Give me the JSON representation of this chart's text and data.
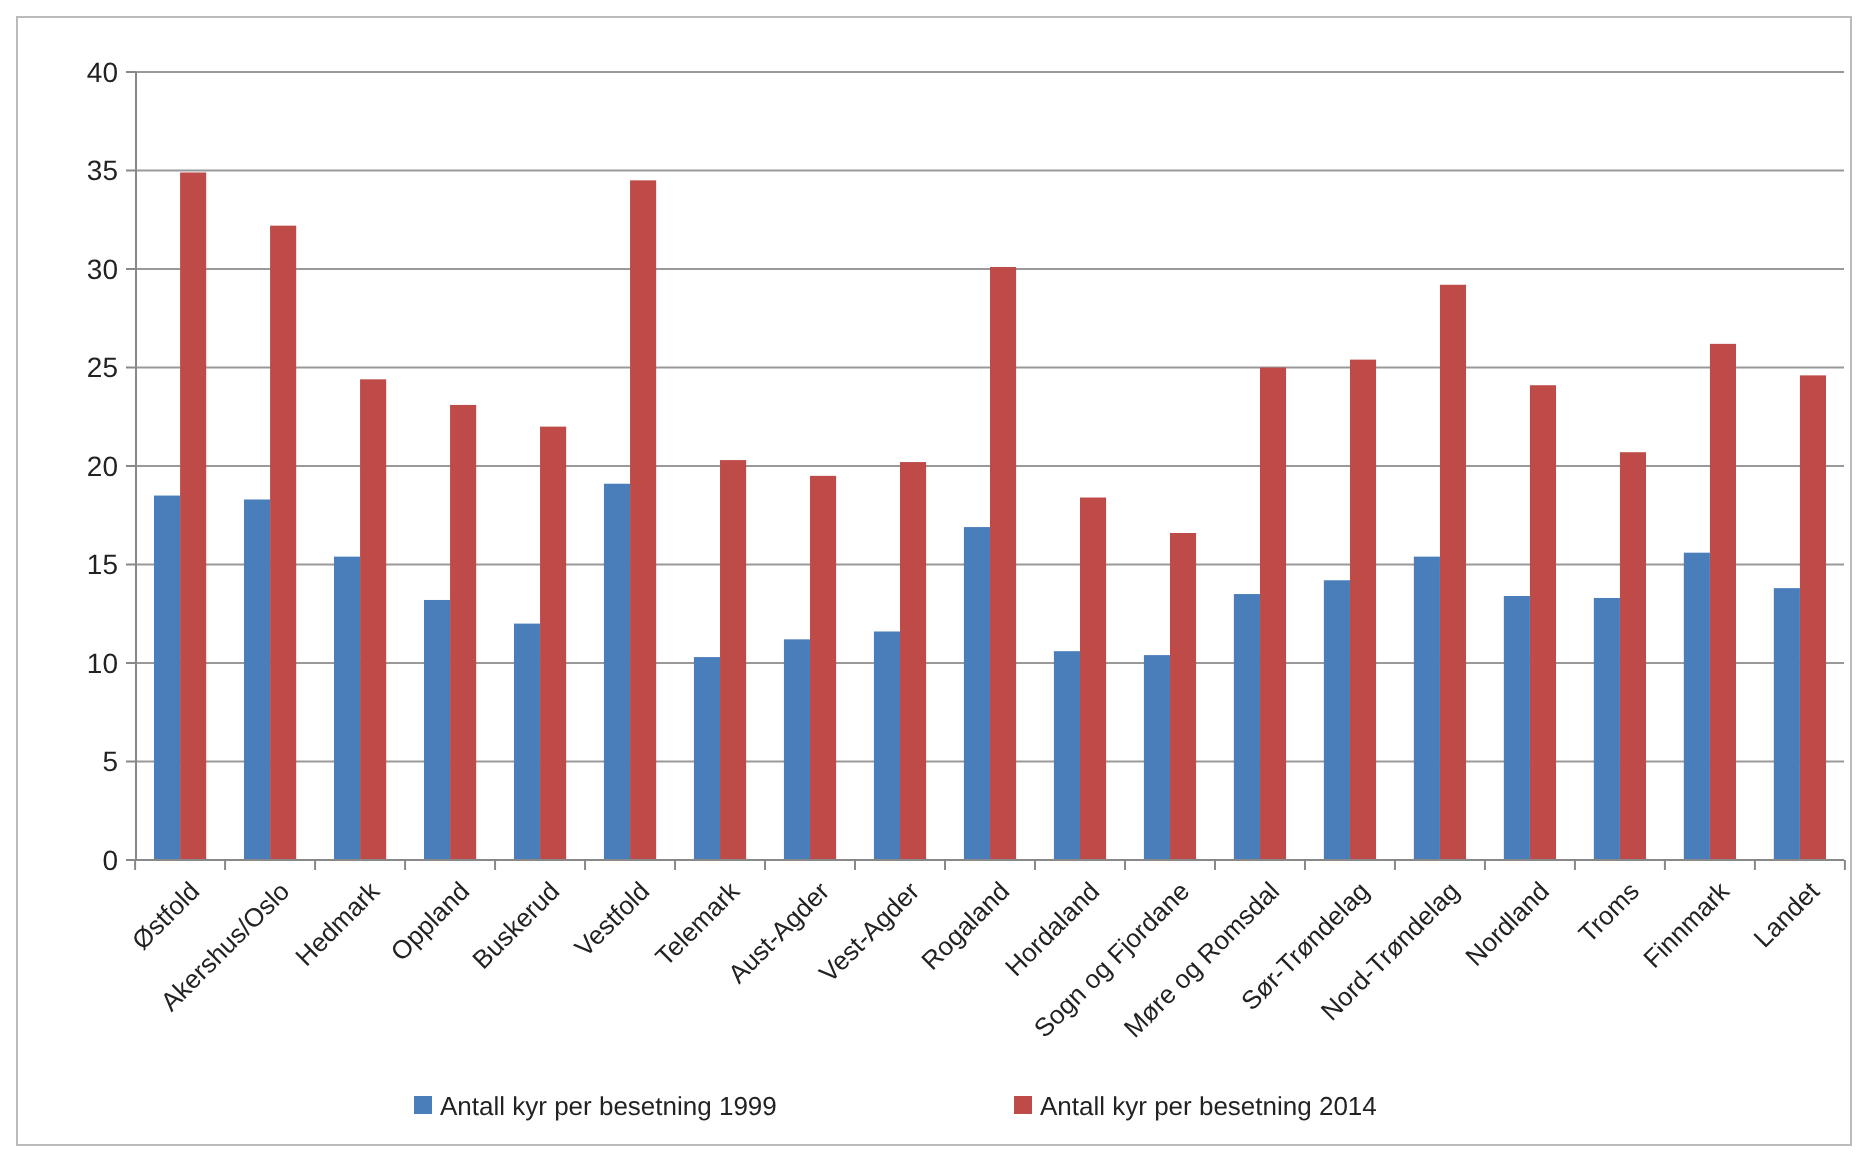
{
  "chart_data": {
    "type": "bar",
    "categories": [
      "Østfold",
      "Akershus/Oslo",
      "Hedmark",
      "Oppland",
      "Buskerud",
      "Vestfold",
      "Telemark",
      "Aust-Agder",
      "Vest-Agder",
      "Rogaland",
      "Hordaland",
      "Sogn og Fjordane",
      "Møre og Romsdal",
      "Sør-Trøndelag",
      "Nord-Trøndelag",
      "Nordland",
      "Troms",
      "Finnmark",
      "Landet"
    ],
    "series": [
      {
        "name": "Antall kyr per besetning 1999",
        "color": "#4a7ebb",
        "values": [
          18.5,
          18.3,
          15.4,
          13.2,
          12.0,
          19.1,
          10.3,
          11.2,
          11.6,
          16.9,
          10.6,
          10.4,
          13.5,
          14.2,
          15.4,
          13.4,
          13.3,
          15.6,
          13.8
        ]
      },
      {
        "name": "Antall kyr per besetning 2014",
        "color": "#be4b48",
        "values": [
          34.9,
          32.2,
          24.4,
          23.1,
          22.0,
          34.5,
          20.3,
          19.5,
          20.2,
          30.1,
          18.4,
          16.6,
          25.0,
          25.4,
          29.2,
          24.1,
          20.7,
          26.2,
          24.6
        ]
      }
    ],
    "ylim": [
      0,
      40
    ],
    "yticks": [
      0,
      5,
      10,
      15,
      20,
      25,
      30,
      35,
      40
    ],
    "grid": "y",
    "legend": "bottom"
  }
}
